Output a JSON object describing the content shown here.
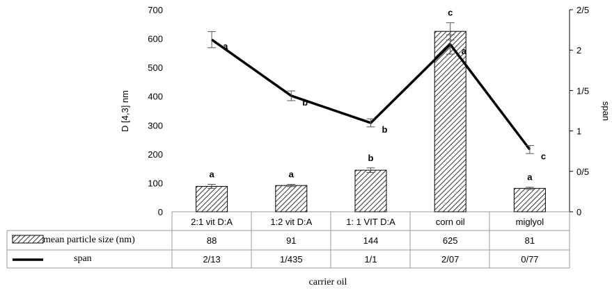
{
  "chart_data": {
    "type": "bar",
    "categories": [
      "2:1 vit D:A",
      "1:2 vit D:A",
      "1: 1 VIT D:A",
      "corn oil",
      "miglyol"
    ],
    "xlabel": "carrier oil",
    "ylabel": "D [4,3] nm",
    "y2label": "span",
    "ylim": [
      0,
      700
    ],
    "y2lim": [
      0,
      2.5
    ],
    "yticks": [
      "0",
      "100",
      "200",
      "300",
      "400",
      "500",
      "600",
      "700"
    ],
    "y2ticks": [
      "0",
      "0/5",
      "1",
      "1/5",
      "2",
      "2/5"
    ],
    "series": [
      {
        "name": "mean particle size (nm)",
        "type": "bar",
        "axis": "left",
        "values": [
          88,
          91,
          144,
          625,
          81
        ],
        "errors": [
          7,
          4,
          8,
          30,
          4
        ],
        "table_values": [
          "88",
          "91",
          "144",
          "625",
          "81"
        ],
        "significance": [
          "a",
          "a",
          "b",
          "c",
          "a"
        ],
        "color": "#000000"
      },
      {
        "name": "span",
        "type": "line",
        "axis": "right",
        "values": [
          2.13,
          1.435,
          1.1,
          2.07,
          0.77
        ],
        "errors": [
          0.1,
          0.06,
          0.05,
          0.12,
          0.05
        ],
        "table_values": [
          "2/13",
          "1/435",
          "1/1",
          "2/07",
          "0/77"
        ],
        "significance": [
          "a",
          "b",
          "b",
          "a",
          "c"
        ],
        "color": "#000000"
      }
    ],
    "grid": false,
    "legend": "data-table"
  }
}
